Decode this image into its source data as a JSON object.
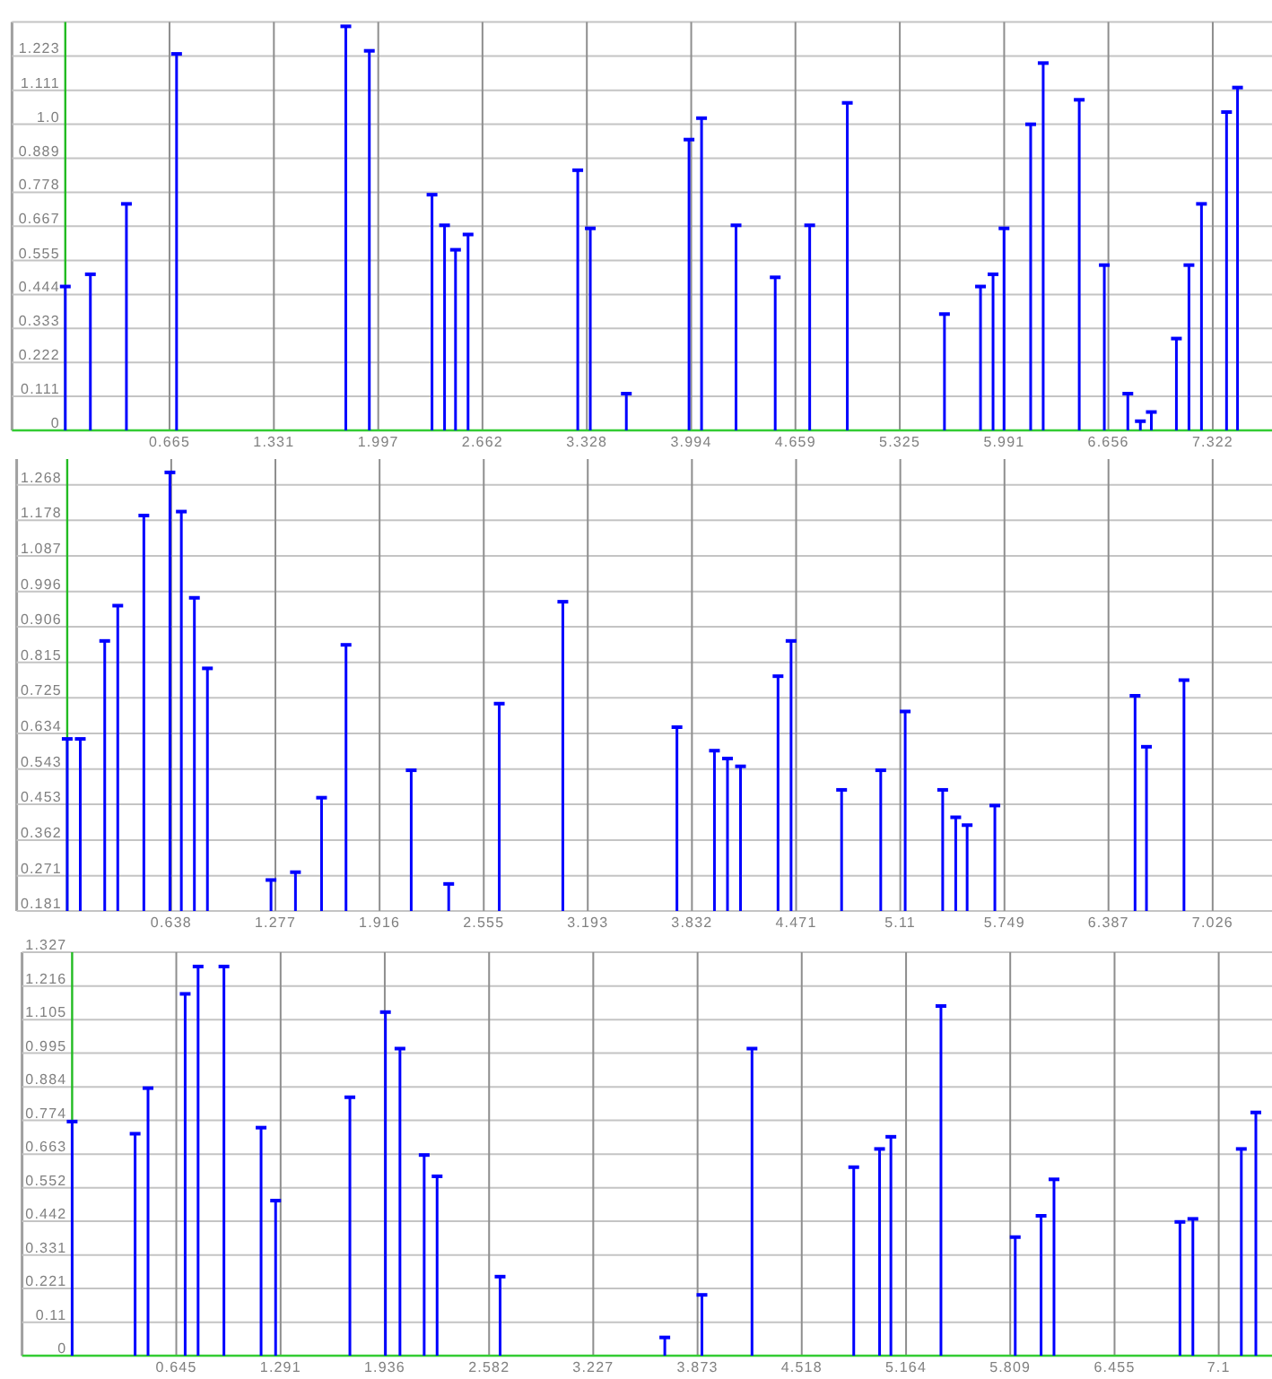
{
  "chart_data": [
    {
      "type": "lollipop",
      "color": "#0000ff",
      "grid": true,
      "xlim": [
        -0.34,
        7.7
      ],
      "ylim": [
        0,
        1.334
      ],
      "xticks": [
        0.665,
        1.331,
        1.997,
        2.662,
        3.328,
        3.994,
        4.659,
        5.325,
        5.991,
        6.656,
        7.322
      ],
      "yticks": [
        0,
        0.111,
        0.222,
        0.333,
        0.444,
        0.555,
        0.667,
        0.778,
        0.889,
        {
          "value": 1,
          "label": "1.0"
        },
        1.111,
        1.223,
        {
          "value": 1.334,
          "label": null
        }
      ],
      "ref_lines": [
        {
          "axis": "x",
          "value": 0,
          "color": "#22bb22"
        }
      ],
      "x": [
        0,
        0.16,
        0.39,
        0.71,
        1.79,
        1.94,
        2.34,
        2.42,
        2.49,
        2.57,
        3.27,
        3.35,
        3.58,
        3.98,
        4.06,
        4.28,
        4.53,
        4.75,
        4.99,
        5.61,
        5.84,
        5.92,
        5.99,
        6.16,
        6.24,
        6.47,
        6.63,
        6.78,
        6.86,
        6.93,
        7.09,
        7.17,
        7.25,
        7.41,
        7.48
      ],
      "values": [
        0.47,
        0.51,
        0.74,
        1.23,
        1.32,
        1.24,
        0.77,
        0.67,
        0.59,
        0.64,
        0.85,
        0.66,
        0.12,
        0.95,
        1.02,
        0.67,
        0.5,
        0.67,
        1.07,
        0.38,
        0.47,
        0.51,
        0.66,
        1.0,
        1.2,
        1.08,
        0.54,
        0.12,
        0.03,
        0.06,
        0.3,
        0.54,
        0.74,
        1.04,
        1.12
      ]
    },
    {
      "type": "lollipop",
      "color": "#0000ff",
      "grid": true,
      "xlim": [
        -0.31,
        7.39
      ],
      "ylim": [
        0.181,
        1.334
      ],
      "xticks": [
        0.638,
        1.277,
        1.916,
        2.555,
        3.193,
        3.832,
        4.471,
        5.11,
        5.749,
        6.387,
        7.026
      ],
      "yticks": [
        0.181,
        0.271,
        0.362,
        0.453,
        0.543,
        0.634,
        0.725,
        0.815,
        0.906,
        0.996,
        1.087,
        1.178,
        1.268
      ],
      "ref_lines": [
        {
          "axis": "x",
          "value": 0,
          "color": "#22bb22"
        }
      ],
      "x": [
        0,
        0.08,
        0.23,
        0.31,
        0.47,
        0.63,
        0.7,
        0.78,
        0.86,
        1.25,
        1.4,
        1.56,
        1.71,
        2.11,
        2.34,
        2.65,
        3.04,
        3.74,
        3.97,
        4.05,
        4.13,
        4.36,
        4.44,
        4.75,
        4.99,
        5.14,
        5.37,
        5.45,
        5.52,
        5.69,
        6.55,
        6.62,
        6.85
      ],
      "values": [
        0.62,
        0.62,
        0.87,
        0.96,
        1.19,
        1.3,
        1.2,
        0.98,
        0.8,
        0.26,
        0.28,
        0.47,
        0.86,
        0.54,
        0.25,
        0.71,
        0.97,
        0.65,
        0.59,
        0.57,
        0.55,
        0.78,
        0.87,
        0.49,
        0.54,
        0.69,
        0.49,
        0.42,
        0.4,
        0.45,
        0.73,
        0.6,
        0.77
      ]
    },
    {
      "type": "lollipop",
      "color": "#0000ff",
      "grid": true,
      "xlim": [
        -0.31,
        7.43
      ],
      "ylim": [
        0,
        1.327
      ],
      "xticks": [
        0.645,
        1.291,
        1.936,
        2.582,
        3.227,
        3.873,
        4.518,
        5.164,
        5.809,
        6.455,
        7.1
      ],
      "yticks": [
        0,
        0.11,
        0.221,
        0.331,
        0.442,
        0.552,
        0.663,
        0.774,
        0.884,
        0.995,
        1.105,
        1.216,
        1.327
      ],
      "ref_lines": [
        {
          "axis": "x",
          "value": 0,
          "color": "#22bb22"
        }
      ],
      "x": [
        0,
        0.39,
        0.47,
        0.7,
        0.78,
        0.94,
        1.17,
        1.26,
        1.72,
        1.94,
        2.03,
        2.18,
        2.26,
        2.65,
        3.67,
        3.9,
        4.21,
        4.84,
        5.0,
        5.07,
        5.38,
        5.84,
        6.0,
        6.08,
        6.86,
        6.94,
        7.24,
        7.33
      ],
      "values": [
        0.77,
        0.73,
        0.88,
        1.19,
        1.28,
        1.28,
        0.75,
        0.51,
        0.85,
        1.13,
        1.01,
        0.66,
        0.59,
        0.26,
        0.06,
        0.2,
        1.01,
        0.62,
        0.68,
        0.72,
        1.15,
        0.39,
        0.46,
        0.58,
        0.44,
        0.45,
        0.68,
        0.8
      ]
    }
  ]
}
